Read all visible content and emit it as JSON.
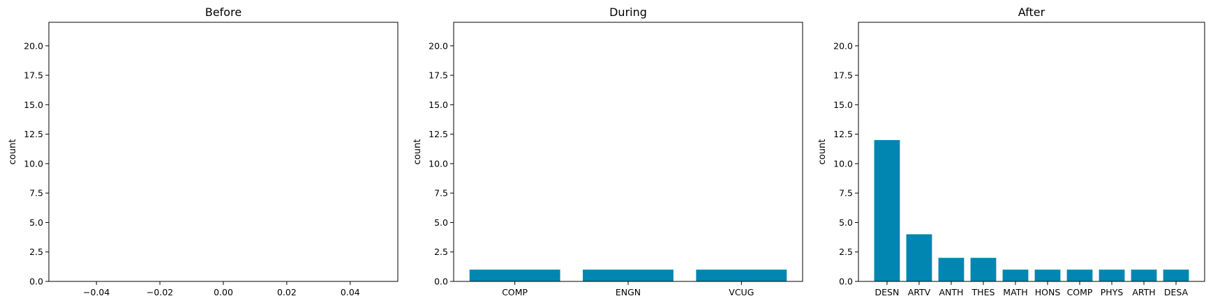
{
  "chart_data": [
    {
      "type": "bar",
      "title": "Before",
      "ylabel": "count",
      "xlabel": "",
      "categories": [],
      "values": [],
      "ylim": [
        0,
        22
      ],
      "yticks": [
        "0.0",
        "2.5",
        "5.0",
        "7.5",
        "10.0",
        "12.5",
        "15.0",
        "17.5",
        "20.0"
      ],
      "xlim": [
        -0.055,
        0.055
      ],
      "xticks": [
        "−0.04",
        "−0.02",
        "0.00",
        "0.02",
        "0.04"
      ],
      "grid": false,
      "bar_color": "#0086b0"
    },
    {
      "type": "bar",
      "title": "During",
      "ylabel": "count",
      "xlabel": "",
      "categories": [
        "COMP",
        "ENGN",
        "VCUG"
      ],
      "values": [
        1,
        1,
        1
      ],
      "ylim": [
        0,
        22
      ],
      "yticks": [
        "0.0",
        "2.5",
        "5.0",
        "7.5",
        "10.0",
        "12.5",
        "15.0",
        "17.5",
        "20.0"
      ],
      "grid": false,
      "bar_color": "#0086b0"
    },
    {
      "type": "bar",
      "title": "After",
      "ylabel": "count",
      "xlabel": "",
      "categories": [
        "DESN",
        "ARTV",
        "ANTH",
        "THES",
        "MATH",
        "HONS",
        "COMP",
        "PHYS",
        "ARTH",
        "DESA"
      ],
      "values": [
        12,
        4,
        2,
        2,
        1,
        1,
        1,
        1,
        1,
        1
      ],
      "ylim": [
        0,
        22
      ],
      "yticks": [
        "0.0",
        "2.5",
        "5.0",
        "7.5",
        "10.0",
        "12.5",
        "15.0",
        "17.5",
        "20.0"
      ],
      "grid": false,
      "bar_color": "#0086b0"
    }
  ]
}
